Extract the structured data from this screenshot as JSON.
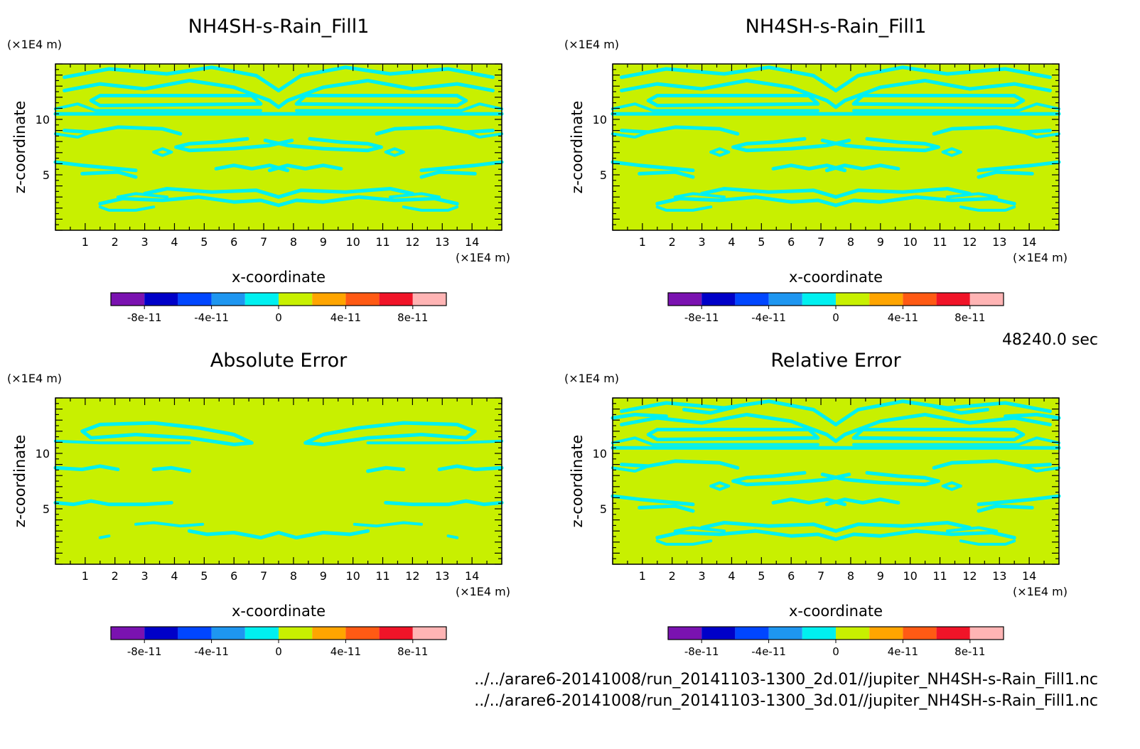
{
  "timestamp": "48240.0 sec",
  "files": [
    "../../arare6-20141008/run_20141103-1300_2d.01//jupiter_NH4SH-s-Rain_Fill1.nc",
    "../../arare6-20141008/run_20141103-1300_3d.01//jupiter_NH4SH-s-Rain_Fill1.nc"
  ],
  "colors": {
    "background_fill": "#c8f000",
    "contour_fill": "#00f0f0"
  },
  "colorbar": {
    "colors": [
      "#7a12b0",
      "#0000c8",
      "#0046ff",
      "#1e96f0",
      "#00f0f0",
      "#c8f000",
      "#ffa500",
      "#ff5a14",
      "#f01428",
      "#ffb4b4"
    ],
    "tick_labels": [
      "-8e-11",
      "-4e-11",
      "0",
      "4e-11",
      "8e-11"
    ]
  },
  "chart_data": [
    {
      "type": "heatmap",
      "title": "NH4SH-s-Rain_Fill1",
      "xlabel": "x-coordinate",
      "ylabel": "z-coordinate",
      "x_unit": "(×1E4 m)",
      "y_unit": "(×1E4 m)",
      "xlim": [
        0,
        15
      ],
      "ylim": [
        0,
        15
      ],
      "x_ticks": [
        1,
        2,
        3,
        4,
        5,
        6,
        7,
        8,
        9,
        10,
        11,
        12,
        13,
        14
      ],
      "y_ticks": [
        5,
        10
      ],
      "pattern": "field"
    },
    {
      "type": "heatmap",
      "title": "NH4SH-s-Rain_Fill1",
      "xlabel": "x-coordinate",
      "ylabel": "z-coordinate",
      "x_unit": "(×1E4 m)",
      "y_unit": "(×1E4 m)",
      "xlim": [
        0,
        15
      ],
      "ylim": [
        0,
        15
      ],
      "x_ticks": [
        1,
        2,
        3,
        4,
        5,
        6,
        7,
        8,
        9,
        10,
        11,
        12,
        13,
        14
      ],
      "y_ticks": [
        5,
        10
      ],
      "pattern": "field"
    },
    {
      "type": "heatmap",
      "title": "Absolute Error",
      "xlabel": "x-coordinate",
      "ylabel": "z-coordinate",
      "x_unit": "(×1E4 m)",
      "y_unit": "(×1E4 m)",
      "xlim": [
        0,
        15
      ],
      "ylim": [
        0,
        15
      ],
      "x_ticks": [
        1,
        2,
        3,
        4,
        5,
        6,
        7,
        8,
        9,
        10,
        11,
        12,
        13,
        14
      ],
      "y_ticks": [
        5,
        10
      ],
      "pattern": "abs"
    },
    {
      "type": "heatmap",
      "title": "Relative Error",
      "xlabel": "x-coordinate",
      "ylabel": "z-coordinate",
      "x_unit": "(×1E4 m)",
      "y_unit": "(×1E4 m)",
      "xlim": [
        0,
        15
      ],
      "ylim": [
        0,
        15
      ],
      "x_ticks": [
        1,
        2,
        3,
        4,
        5,
        6,
        7,
        8,
        9,
        10,
        11,
        12,
        13,
        14
      ],
      "y_ticks": [
        5,
        10
      ],
      "pattern": "rel"
    }
  ]
}
